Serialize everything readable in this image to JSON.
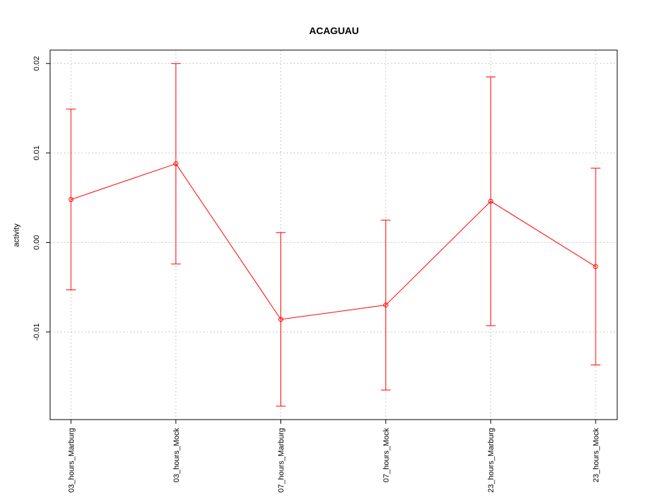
{
  "chart_data": {
    "type": "line",
    "title": "ACAGUAU",
    "y_label": "activity",
    "categories": [
      "03_hours_Marburg",
      "03_hours_Mock",
      "07_hours_Marburg",
      "07_hours_Mock",
      "23_hours_Marburg",
      "23_hours_Mock"
    ],
    "values": [
      0.0048,
      0.0088,
      -0.0086,
      -0.007,
      0.0046,
      -0.0027
    ],
    "errors": [
      0.0101,
      0.0112,
      0.0097,
      0.0095,
      0.0139,
      0.011
    ],
    "color": "#ff0000",
    "ylim": [
      -0.0198,
      0.0215
    ],
    "yticks": [
      {
        "value": -0.01,
        "label": "-0.01"
      },
      {
        "value": 0,
        "label": "0.00"
      },
      0.01,
      0.02
    ],
    "grid": true
  }
}
